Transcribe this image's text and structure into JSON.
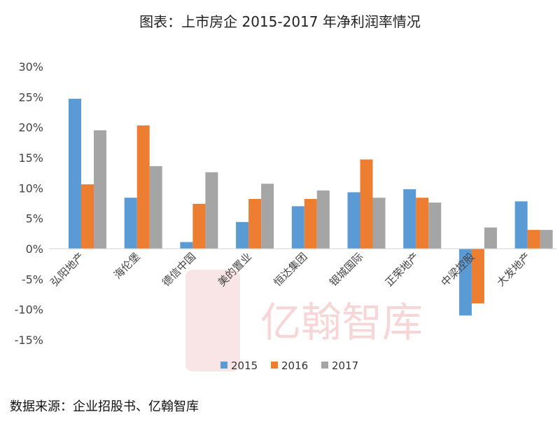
{
  "chart_data": {
    "type": "bar",
    "title": "图表：上市房企 2015-2017 年净利润率情况",
    "categories": [
      "弘阳地产",
      "海伦堡",
      "德信中国",
      "美的置业",
      "恒达集团",
      "银城国际",
      "正荣地产",
      "中梁控股",
      "大发地产"
    ],
    "series": [
      {
        "name": "2015",
        "color": "#5b9bd5",
        "values": [
          24.7,
          8.4,
          1.1,
          4.4,
          7.0,
          9.3,
          9.8,
          -11.0,
          7.8
        ]
      },
      {
        "name": "2016",
        "color": "#ed7d31",
        "values": [
          10.6,
          20.3,
          7.4,
          8.2,
          8.2,
          14.7,
          8.4,
          -9.0,
          3.1
        ]
      },
      {
        "name": "2017",
        "color": "#a5a5a5",
        "values": [
          19.5,
          13.6,
          12.6,
          10.7,
          9.6,
          8.4,
          7.6,
          3.5,
          3.1
        ]
      }
    ],
    "ylim": [
      -15,
      30
    ],
    "yticks": [
      30,
      25,
      20,
      15,
      10,
      5,
      0,
      -5,
      -10,
      -15
    ],
    "ytick_labels": [
      "30%",
      "25%",
      "20%",
      "15%",
      "10%",
      "5%",
      "0%",
      "-5%",
      "-10%",
      "-15%"
    ],
    "legend_position": "bottom-center",
    "grid": false
  },
  "source_note": "数据来源：企业招股书、亿翰智库",
  "watermark": {
    "text": "亿翰智库",
    "seal_text": "亿翰"
  }
}
